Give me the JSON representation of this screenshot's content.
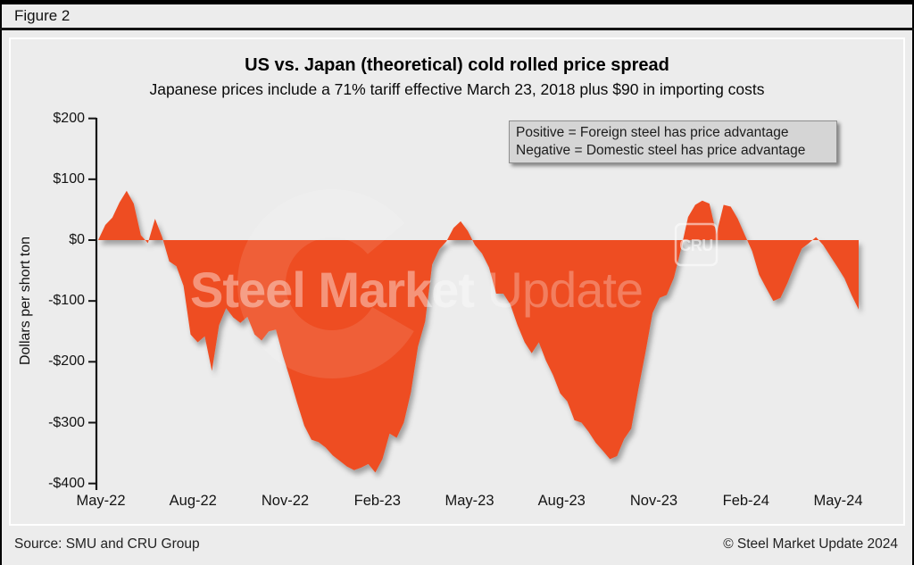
{
  "figure_label": "Figure 2",
  "title": "US vs. Japan (theoretical) cold rolled price spread",
  "subtitle": "Japanese prices include a 71% tariff effective March 23, 2018 plus $90 in importing costs",
  "legend": {
    "line1": "Positive = Foreign steel has price advantage",
    "line2": "Negative = Domestic steel has price advantage"
  },
  "watermark": {
    "text_bold": "Steel Market",
    "text_light": " Update",
    "badge": "CRU"
  },
  "footer": {
    "source": "Source: SMU and CRU Group",
    "copyright": "© Steel Market Update 2024"
  },
  "chart_data": {
    "type": "area",
    "title": "US vs. Japan (theoretical) cold rolled price spread",
    "subtitle": "Japanese prices include a 71% tariff effective March 23, 2018 plus $90 in importing costs",
    "ylabel": "Dollars per short ton",
    "xlabel": "",
    "unit": "USD per short ton",
    "ylim": [
      -400,
      200
    ],
    "ytick_step": 100,
    "ytick_labels": [
      "$200",
      "$100",
      "$0",
      "-$100",
      "-$200",
      "-$300",
      "-$400"
    ],
    "ytick_values": [
      200,
      100,
      0,
      -100,
      -200,
      -300,
      -400
    ],
    "xtick_labels": [
      "May-22",
      "Aug-22",
      "Nov-22",
      "Feb-23",
      "May-23",
      "Aug-23",
      "Nov-23",
      "Feb-24",
      "May-24"
    ],
    "series_name": "US minus Japan (theoretical) cold rolled price spread",
    "frequency": "weekly",
    "start": "2022-05",
    "end": "2024-06",
    "grid": false,
    "legend_position": "top-right",
    "values": [
      0,
      25,
      37,
      62,
      81,
      60,
      8,
      -5,
      35,
      5,
      -35,
      -43,
      -75,
      -155,
      -168,
      -158,
      -215,
      -140,
      -112,
      -127,
      -136,
      -126,
      -155,
      -165,
      -150,
      -147,
      -190,
      -228,
      -268,
      -305,
      -328,
      -332,
      -341,
      -354,
      -363,
      -372,
      -378,
      -374,
      -368,
      -382,
      -360,
      -318,
      -325,
      -300,
      -250,
      -175,
      -134,
      -40,
      -15,
      -2,
      20,
      31,
      15,
      -8,
      -22,
      -45,
      -88,
      -88,
      -106,
      -140,
      -168,
      -186,
      -168,
      -198,
      -222,
      -252,
      -265,
      -296,
      -300,
      -315,
      -333,
      -346,
      -360,
      -355,
      -327,
      -310,
      -245,
      -185,
      -120,
      -95,
      -90,
      -62,
      -15,
      38,
      58,
      65,
      60,
      10,
      58,
      55,
      35,
      8,
      -18,
      -57,
      -79,
      -100,
      -95,
      -70,
      -41,
      -14,
      -5,
      5,
      -8,
      -26,
      -44,
      -63,
      -90,
      -114
    ],
    "colors": {
      "area": "#EE4D23",
      "zero_line": "#101010",
      "axis": "#141414",
      "background": "#ECECEC",
      "legend_background": "#D5D5D5"
    }
  }
}
